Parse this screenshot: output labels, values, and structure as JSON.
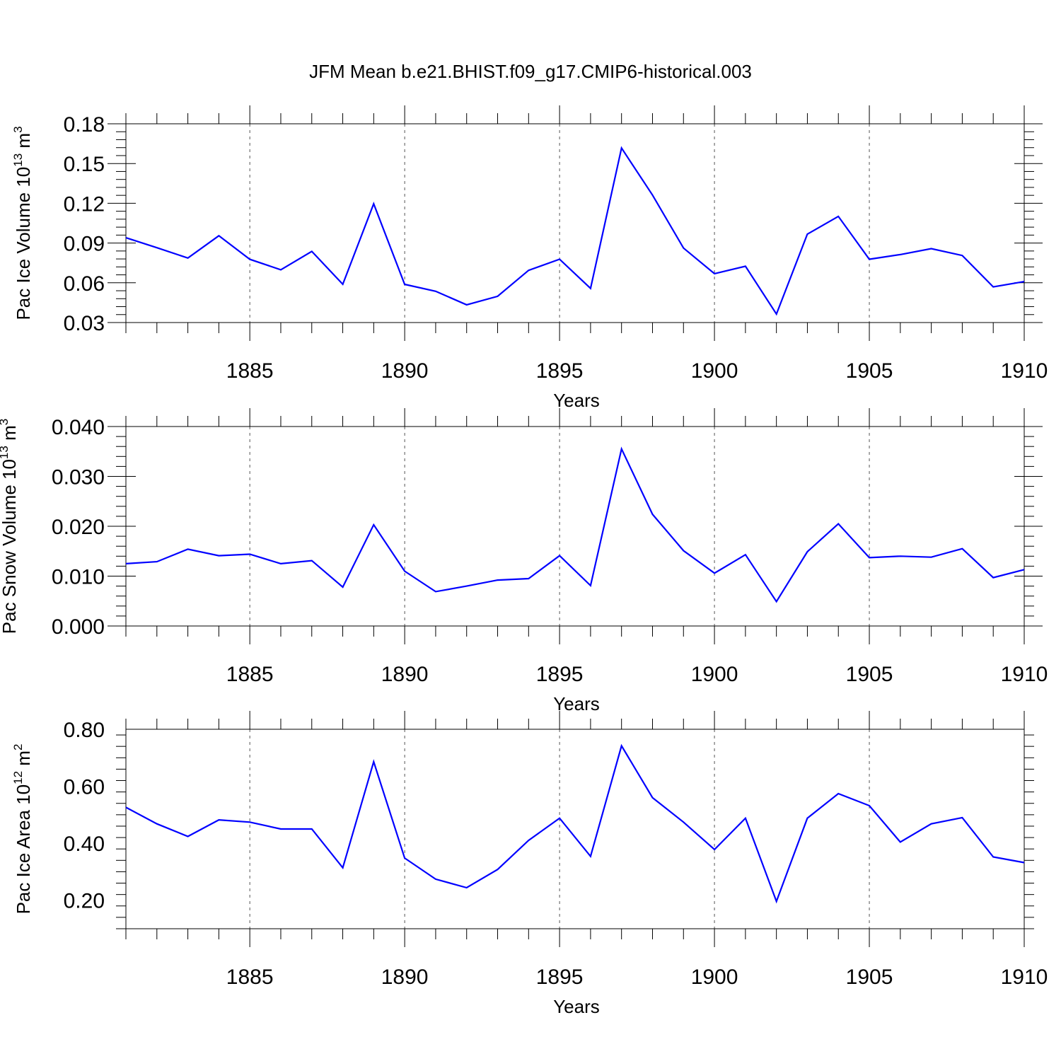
{
  "title": "JFM Mean b.e21.BHIST.f09_g17.CMIP6-historical.003",
  "colors": {
    "line": "#0000ff",
    "axes": "#000000",
    "grid": "#555555"
  },
  "chart_data": [
    {
      "type": "line",
      "ylabel": "Pac Ice Volume 10",
      "ylabel_exp": "13",
      "ylabel_unit": " m",
      "ylabel_unit_exp": "3",
      "xlabel": "Years",
      "xlim": [
        1881,
        1910
      ],
      "ylim": [
        0.03,
        0.18
      ],
      "yticks": [
        0.03,
        0.06,
        0.09,
        0.12,
        0.15,
        0.18
      ],
      "ytick_labels": [
        "0.03",
        "0.06",
        "0.09",
        "0.12",
        "0.15",
        "0.18"
      ],
      "xticks": [
        1885,
        1890,
        1895,
        1900,
        1905,
        1910
      ],
      "xtick_labels": [
        "1885",
        "1890",
        "1895",
        "1900",
        "1905",
        "1910"
      ],
      "x": [
        1881,
        1882,
        1883,
        1884,
        1885,
        1886,
        1887,
        1888,
        1889,
        1890,
        1891,
        1892,
        1893,
        1894,
        1895,
        1896,
        1897,
        1898,
        1899,
        1900,
        1901,
        1902,
        1903,
        1904,
        1905,
        1906,
        1907,
        1908,
        1909,
        1910
      ],
      "y": [
        0.094,
        0.0865,
        0.0787,
        0.0955,
        0.0777,
        0.0698,
        0.0837,
        0.0589,
        0.1196,
        0.0588,
        0.0536,
        0.0434,
        0.0498,
        0.0694,
        0.0778,
        0.0558,
        0.1617,
        0.1262,
        0.0862,
        0.0669,
        0.0725,
        0.0364,
        0.0967,
        0.1101,
        0.0778,
        0.0813,
        0.0858,
        0.0806,
        0.0569,
        0.0609
      ]
    },
    {
      "type": "line",
      "ylabel": "Pac Snow Volume 10",
      "ylabel_exp": "13",
      "ylabel_unit": " m",
      "ylabel_unit_exp": "3",
      "xlabel": "Years",
      "xlim": [
        1881,
        1910
      ],
      "ylim": [
        0.0,
        0.04
      ],
      "yticks": [
        0.0,
        0.01,
        0.02,
        0.03,
        0.04
      ],
      "ytick_labels": [
        "0.000",
        "0.010",
        "0.020",
        "0.030",
        "0.040"
      ],
      "xticks": [
        1885,
        1890,
        1895,
        1900,
        1905,
        1910
      ],
      "xtick_labels": [
        "1885",
        "1890",
        "1895",
        "1900",
        "1905",
        "1910"
      ],
      "x": [
        1881,
        1882,
        1883,
        1884,
        1885,
        1886,
        1887,
        1888,
        1889,
        1890,
        1891,
        1892,
        1893,
        1894,
        1895,
        1896,
        1897,
        1898,
        1899,
        1900,
        1901,
        1902,
        1903,
        1904,
        1905,
        1906,
        1907,
        1908,
        1909,
        1910
      ],
      "y": [
        0.0125,
        0.0129,
        0.0154,
        0.0141,
        0.0144,
        0.0125,
        0.0131,
        0.0078,
        0.0203,
        0.011,
        0.0069,
        0.008,
        0.0092,
        0.0095,
        0.0141,
        0.0081,
        0.0355,
        0.0224,
        0.0151,
        0.0106,
        0.0143,
        0.0049,
        0.0149,
        0.0205,
        0.0137,
        0.014,
        0.0138,
        0.0155,
        0.0097,
        0.0113
      ]
    },
    {
      "type": "line",
      "ylabel": "Pac Ice Area 10",
      "ylabel_exp": "12",
      "ylabel_unit": " m",
      "ylabel_unit_exp": "2",
      "xlabel": "Years",
      "xlim": [
        1881,
        1910
      ],
      "ylim": [
        0.1,
        0.8
      ],
      "yticks": [
        0.2,
        0.4,
        0.6,
        0.8
      ],
      "ytick_labels": [
        "0.20",
        "0.40",
        "0.60",
        "0.80"
      ],
      "xticks": [
        1885,
        1890,
        1895,
        1900,
        1905,
        1910
      ],
      "xtick_labels": [
        "1885",
        "1890",
        "1895",
        "1900",
        "1905",
        "1910"
      ],
      "x": [
        1881,
        1882,
        1883,
        1884,
        1885,
        1886,
        1887,
        1888,
        1889,
        1890,
        1891,
        1892,
        1893,
        1894,
        1895,
        1896,
        1897,
        1898,
        1899,
        1900,
        1901,
        1902,
        1903,
        1904,
        1905,
        1906,
        1907,
        1908,
        1909,
        1910
      ],
      "y": [
        0.526,
        0.468,
        0.424,
        0.482,
        0.474,
        0.45,
        0.45,
        0.314,
        0.686,
        0.348,
        0.274,
        0.244,
        0.308,
        0.41,
        0.488,
        0.354,
        0.742,
        0.56,
        0.474,
        0.378,
        0.488,
        0.196,
        0.488,
        0.574,
        0.532,
        0.404,
        0.468,
        0.49,
        0.352,
        0.332
      ]
    }
  ]
}
